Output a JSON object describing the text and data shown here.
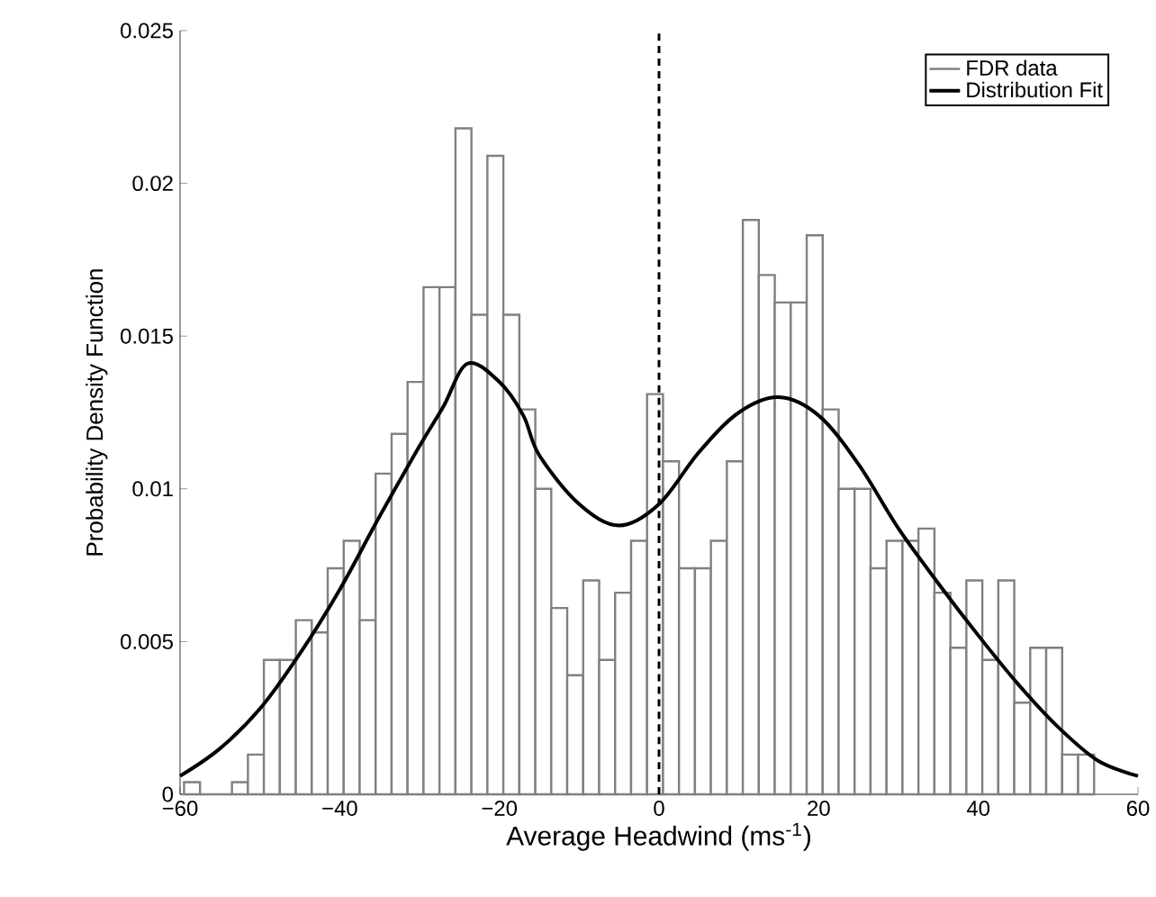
{
  "chart_data": {
    "type": "histogram",
    "xlabel": "Average Headwind (ms$^{-1}$)",
    "ylabel": "Probability Density Function",
    "bins": [
      -59.5,
      -57.5,
      -55.5,
      -53.5,
      -51.5,
      -49.5,
      -47.5,
      -45.5,
      -43.5,
      -41.5,
      -39.5,
      -37.5,
      -35.5,
      -33.5,
      -31.5,
      -29.5,
      -27.5,
      -25.5,
      -23.5,
      -21.5,
      -19.5,
      -17.5,
      -15.5,
      -13.5,
      -11.5,
      -9.5,
      -7.5,
      -5.5,
      -3.5,
      -1.5,
      0.5,
      2.5,
      4.5,
      6.5,
      8.5,
      10.5,
      12.5,
      14.5,
      16.5,
      18.5,
      20.5,
      22.5,
      24.5,
      26.5,
      28.5,
      30.5,
      32.5,
      34.5,
      36.5,
      38.5,
      40.5,
      42.5,
      44.5,
      46.5,
      48.5,
      50.5,
      52.5,
      54.5
    ],
    "series": [
      {
        "name": "FDR data",
        "color": "#808080",
        "values": [
          0.0004,
          0,
          0,
          0.0004,
          0.0013,
          0.0044,
          0.0044,
          0.0057,
          0.0053,
          0.0074,
          0.0083,
          0.0057,
          0.0105,
          0.0118,
          0.0135,
          0.0166,
          0.0166,
          0.0218,
          0.0157,
          0.0209,
          0.0157,
          0.0126,
          0.01,
          0.0061,
          0.0039,
          0.007,
          0.0044,
          0.0066,
          0.0083,
          0.0131,
          0.0109,
          0.0074,
          0.0074,
          0.0083,
          0.0109,
          0.0188,
          0.017,
          0.0161,
          0.0161,
          0.0183,
          0.0126,
          0.01,
          0.01,
          0.0074,
          0.0083,
          0.0083,
          0.0087,
          0.0066,
          0.0048,
          0.007,
          0.0044,
          0.007,
          0.003,
          0.0048,
          0.0048,
          0.0013,
          0.0013
        ]
      },
      {
        "name": "Distribution Fit",
        "type": "line",
        "color": "#000000",
        "x": [
          -60,
          -55,
          -50,
          -45,
          -40,
          -35,
          -30,
          -27,
          -24,
          -20,
          -17,
          -15,
          -10,
          -5,
          0,
          5,
          10,
          15,
          20,
          25,
          30,
          35,
          40,
          45,
          50,
          55,
          60
        ],
        "values": [
          0.0006,
          0.0015,
          0.0028,
          0.0046,
          0.0067,
          0.0091,
          0.0114,
          0.0127,
          0.0141,
          0.0135,
          0.0124,
          0.0111,
          0.0095,
          0.0088,
          0.0095,
          0.0112,
          0.0125,
          0.013,
          0.0124,
          0.0108,
          0.0087,
          0.0069,
          0.0052,
          0.0036,
          0.0022,
          0.0011,
          0.0006
        ]
      }
    ],
    "xlim": [
      -60,
      60
    ],
    "ylim": [
      0,
      0.025
    ],
    "xticks": [
      {
        "value": -60,
        "label": "−60"
      },
      {
        "value": -40,
        "label": "−40"
      },
      {
        "value": -20,
        "label": "−20"
      },
      0,
      20,
      40,
      60
    ],
    "yticks": [
      0,
      0.005,
      0.01,
      0.015,
      0.02,
      0.025
    ],
    "ref_lines": [
      {
        "axis": "x",
        "value": 0,
        "color": "#000000",
        "line_style": "dashed"
      }
    ],
    "legend": "top right",
    "grid": false
  }
}
